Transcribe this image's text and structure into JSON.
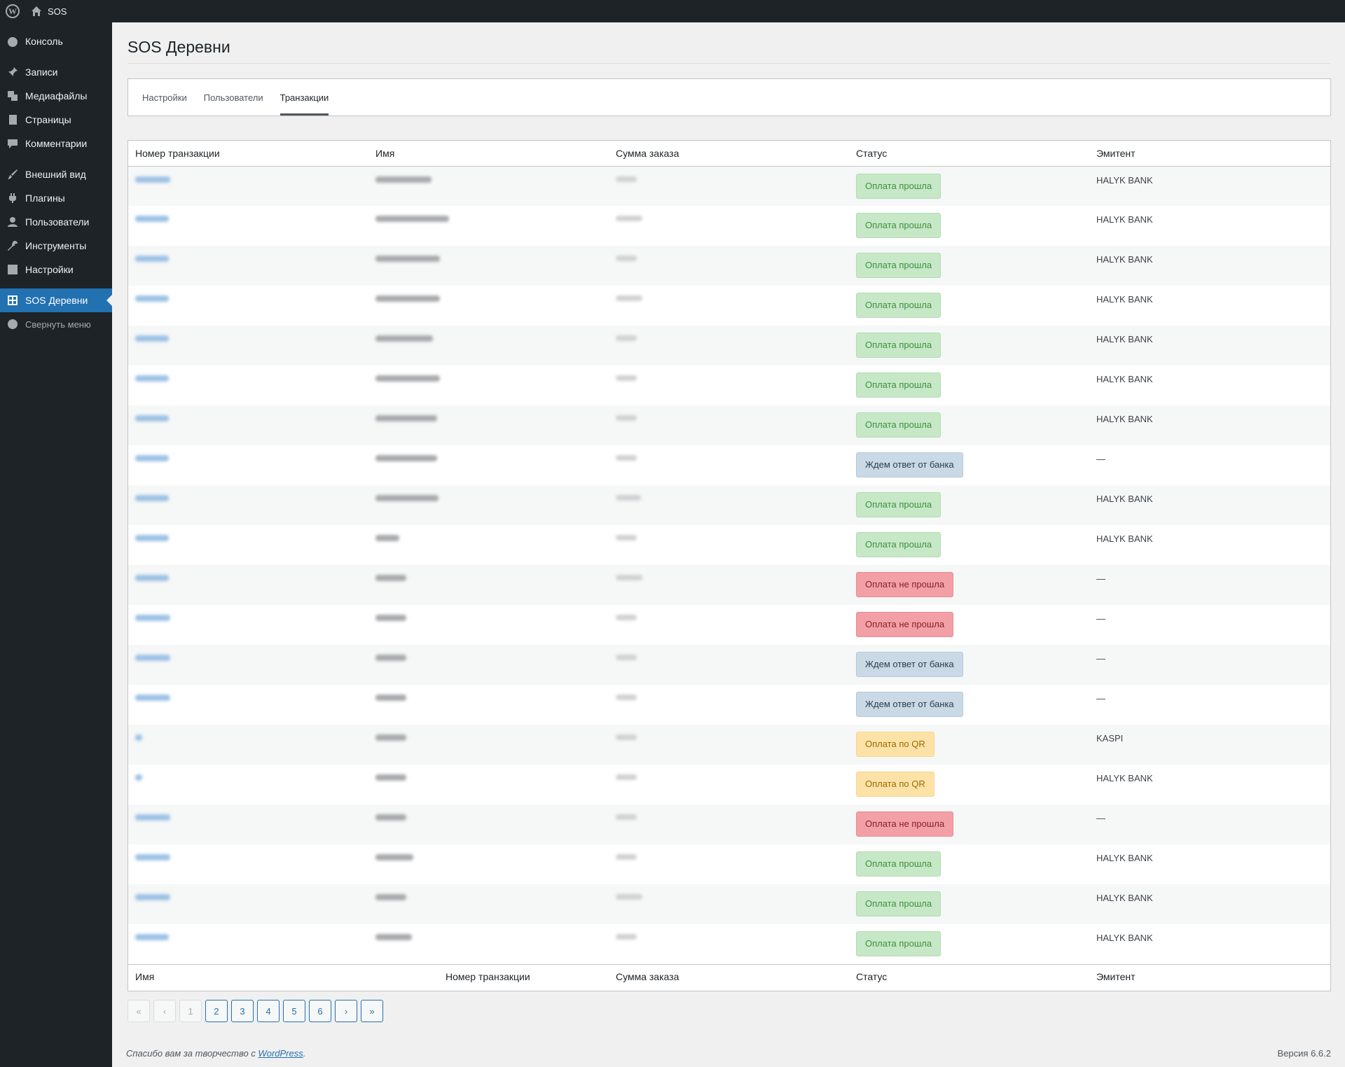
{
  "adminbar": {
    "site_name": "SOS"
  },
  "sidebar": {
    "items": [
      {
        "label": "Консоль",
        "icon": "dashboard-icon"
      },
      {
        "label": "Записи",
        "icon": "pin-icon"
      },
      {
        "label": "Медиафайлы",
        "icon": "media-icon"
      },
      {
        "label": "Страницы",
        "icon": "page-icon"
      },
      {
        "label": "Комментарии",
        "icon": "comment-icon"
      },
      {
        "label": "Внешний вид",
        "icon": "brush-icon"
      },
      {
        "label": "Плагины",
        "icon": "plugin-icon"
      },
      {
        "label": "Пользователи",
        "icon": "user-icon"
      },
      {
        "label": "Инструменты",
        "icon": "wrench-icon"
      },
      {
        "label": "Настройки",
        "icon": "settings-icon"
      },
      {
        "label": "SOS Деревни",
        "icon": "grid-icon"
      },
      {
        "label": "Свернуть меню",
        "icon": "collapse-icon"
      }
    ]
  },
  "page": {
    "title": "SOS Деревни"
  },
  "tabs": [
    "Настройки",
    "Пользователи",
    "Транзакции"
  ],
  "table": {
    "headers": [
      "Номер транзакции",
      "Имя",
      "Сумма заказа",
      "Статус",
      "Эмитент"
    ],
    "footer": [
      "Имя",
      "Номер транзакции",
      "Сумма заказа",
      "Статус",
      "Эмитент"
    ],
    "rows": [
      {
        "status": "Оплата прошла",
        "type": "success",
        "issuer": "HALYK BANK"
      },
      {
        "status": "Оплата прошла",
        "type": "success",
        "issuer": "HALYK BANK"
      },
      {
        "status": "Оплата прошла",
        "type": "success",
        "issuer": "HALYK BANK"
      },
      {
        "status": "Оплата прошла",
        "type": "success",
        "issuer": "HALYK BANK"
      },
      {
        "status": "Оплата прошла",
        "type": "success",
        "issuer": "HALYK BANK"
      },
      {
        "status": "Оплата прошла",
        "type": "success",
        "issuer": "HALYK BANK"
      },
      {
        "status": "Оплата прошла",
        "type": "success",
        "issuer": "HALYK BANK"
      },
      {
        "status": "Ждем ответ от банка",
        "type": "pending",
        "issuer": "—"
      },
      {
        "status": "Оплата прошла",
        "type": "success",
        "issuer": "HALYK BANK"
      },
      {
        "status": "Оплата прошла",
        "type": "success",
        "issuer": "HALYK BANK"
      },
      {
        "status": "Оплата не прошла",
        "type": "failed",
        "issuer": "—"
      },
      {
        "status": "Оплата не прошла",
        "type": "failed",
        "issuer": "—"
      },
      {
        "status": "Ждем ответ от банка",
        "type": "pending",
        "issuer": "—"
      },
      {
        "status": "Ждем ответ от банка",
        "type": "pending",
        "issuer": "—"
      },
      {
        "status": "Оплата по QR",
        "type": "qr",
        "issuer": "KASPI"
      },
      {
        "status": "Оплата по QR",
        "type": "qr",
        "issuer": "HALYK BANK"
      },
      {
        "status": "Оплата не прошла",
        "type": "failed",
        "issuer": "—"
      },
      {
        "status": "Оплата прошла",
        "type": "success",
        "issuer": "HALYK BANK"
      },
      {
        "status": "Оплата прошла",
        "type": "success",
        "issuer": "HALYK BANK"
      },
      {
        "status": "Оплата прошла",
        "type": "success",
        "issuer": "HALYK BANK"
      }
    ]
  },
  "pagination": [
    "«",
    "‹",
    "1",
    "2",
    "3",
    "4",
    "5",
    "6",
    "›",
    "»"
  ],
  "footer": {
    "thanks_prefix": "Спасибо вам за творчество с ",
    "thanks_link": "WordPress",
    "thanks_suffix": ".",
    "version": "Версия 6.6.2"
  }
}
